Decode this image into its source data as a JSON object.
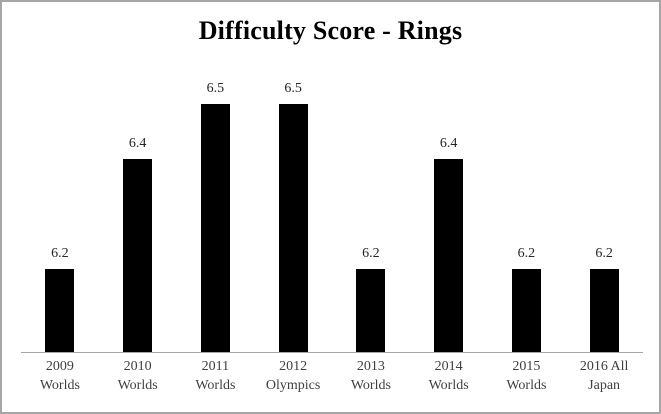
{
  "frame": {
    "background": "#ffffff",
    "border_color": "#a6a6a6"
  },
  "chart_data": {
    "type": "bar",
    "title": "Difficulty Score - Rings",
    "categories": [
      "2009 Worlds",
      "2010 Worlds",
      "2011 Worlds",
      "2012 Olympics",
      "2013 Worlds",
      "2014 Worlds",
      "2015 Worlds",
      "2016 All Japan"
    ],
    "category_label_lines": [
      [
        "2009",
        "Worlds"
      ],
      [
        "2010",
        "Worlds"
      ],
      [
        "2011",
        "Worlds"
      ],
      [
        "2012",
        "Olympics"
      ],
      [
        "2013",
        "Worlds"
      ],
      [
        "2014",
        "Worlds"
      ],
      [
        "2015",
        "Worlds"
      ],
      [
        "2016 All",
        "Japan"
      ]
    ],
    "values": [
      6.2,
      6.4,
      6.5,
      6.5,
      6.2,
      6.4,
      6.2,
      6.2
    ],
    "data_labels": [
      "6.2",
      "6.4",
      "6.5",
      "6.5",
      "6.2",
      "6.4",
      "6.2",
      "6.2"
    ],
    "xlabel": "",
    "ylabel": "",
    "ylim": [
      6.05,
      6.55
    ],
    "grid": false,
    "legend": "none",
    "bar_color": "#000000",
    "axis_line_color": "#a6a6a6",
    "data_label_color": "#262626",
    "tick_label_color": "#404040",
    "title_color": "#000000"
  }
}
